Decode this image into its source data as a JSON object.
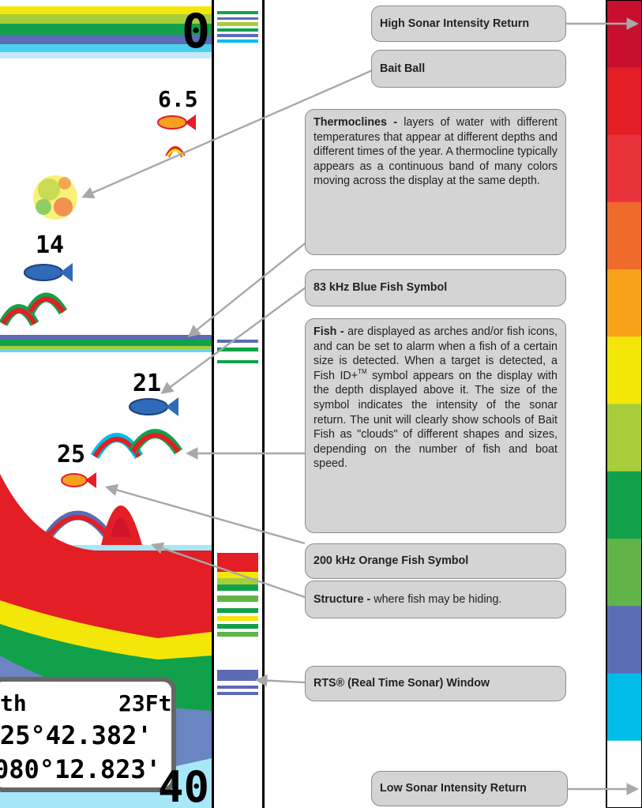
{
  "screen": {
    "depth_top": "0",
    "depth_bottom": "40",
    "fish_depths": [
      "6.5",
      "14",
      "21",
      "25"
    ],
    "info_box": {
      "depth_label": "th",
      "depth_value": "23Ft",
      "latitude": "25°42.382'",
      "longitude": "080°12.823'"
    }
  },
  "callouts": {
    "high_intensity": {
      "title": "High Sonar Intensity Return"
    },
    "bait_ball": {
      "title": "Bait Ball"
    },
    "thermoclines": {
      "title": "Thermoclines -",
      "text": "layers of water with different temperatures that appear at different depths and different times of the year.  A thermocline typically appears as a continuous band of many colors moving across the display at the same depth."
    },
    "blue_fish": {
      "title": "83 kHz Blue Fish Symbol"
    },
    "fish": {
      "title": "Fish -",
      "text_before": "are displayed as arches and/or fish icons, and can be set to alarm when a fish of a certain size is detected. When a target is detected, a Fish ID+",
      "trademark": "TM",
      "text_after": "symbol appears on the display with the depth displayed above it. The size of the symbol indicates the intensity of the sonar return. The unit will clearly show schools of Bait Fish as \"clouds\" of different shapes and sizes, depending on the number of fish and boat speed."
    },
    "orange_fish": {
      "title": "200 kHz Orange Fish Symbol"
    },
    "structure": {
      "title": "Structure -",
      "text": "where fish may be hiding."
    },
    "rts_window": {
      "title_before": "RTS",
      "registered": "®",
      "title_after": " (Real Time Sonar) Window"
    },
    "low_intensity": {
      "title": "Low Sonar Intensity Return"
    }
  },
  "colors": {
    "intensity_scale": [
      "#c8102e",
      "#e31e24",
      "#e8323a",
      "#ef6a2d",
      "#f8a21a",
      "#f5e60a",
      "#a8cd3a",
      "#11a14a",
      "#61b448",
      "#5b6bb4",
      "#00bce8",
      "#ffffff"
    ],
    "sonar_red": "#e31e24",
    "blue_fish": "#2f6bb8",
    "orange_fish": "#f5a020",
    "callout_fill": "#d4d4d4",
    "arrow": "#a8a8a8"
  }
}
